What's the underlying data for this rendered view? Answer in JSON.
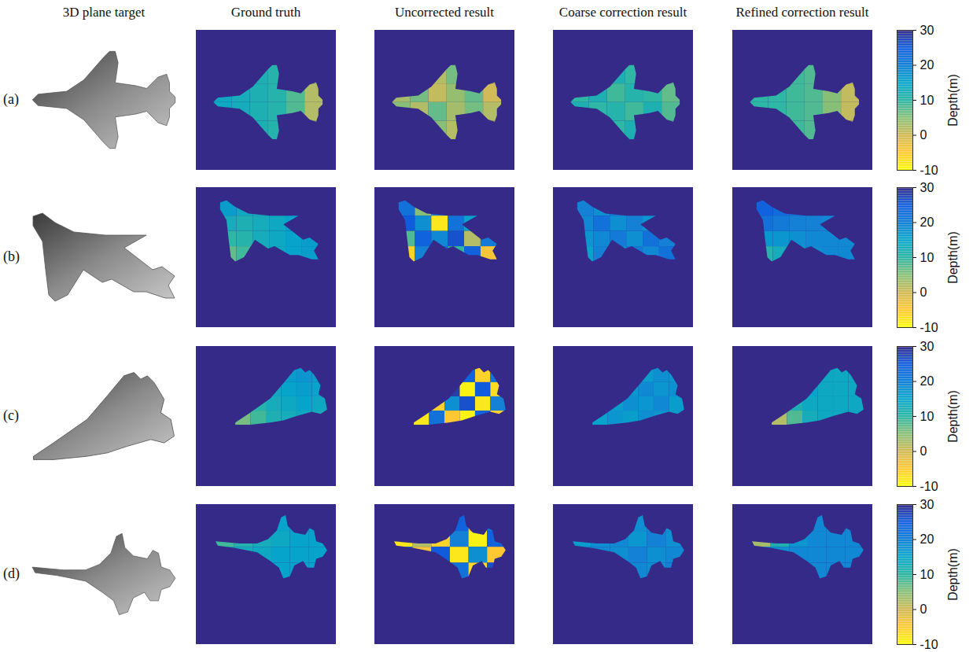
{
  "chart_data": {
    "type": "heatmap",
    "column_titles": [
      "3D plane target",
      "Ground truth",
      "Uncorrected result",
      "Coarse correction result",
      "Refined correction result"
    ],
    "xlim": [
      0,
      64
    ],
    "ylim": [
      0,
      64
    ],
    "tick_labels": false,
    "colorbar": {
      "label": "Depth(m)",
      "range": [
        -10,
        30
      ],
      "ticks": [
        -10,
        0,
        10,
        20,
        30
      ]
    },
    "rows": [
      {
        "label": "(a)",
        "background": 30,
        "outline": [
          [
            8,
            33
          ],
          [
            10,
            31
          ],
          [
            20,
            30
          ],
          [
            26,
            26
          ],
          [
            33,
            18
          ],
          [
            35,
            16
          ],
          [
            37,
            16
          ],
          [
            38,
            20
          ],
          [
            37,
            27
          ],
          [
            44,
            28
          ],
          [
            48,
            29
          ],
          [
            52,
            25
          ],
          [
            55,
            24
          ],
          [
            56,
            27
          ],
          [
            56,
            30
          ],
          [
            58,
            32
          ],
          [
            58,
            34
          ],
          [
            56,
            36
          ],
          [
            56,
            39
          ],
          [
            55,
            42
          ],
          [
            52,
            41
          ],
          [
            48,
            37
          ],
          [
            44,
            38
          ],
          [
            37,
            39
          ],
          [
            38,
            46
          ],
          [
            37,
            50
          ],
          [
            35,
            50
          ],
          [
            33,
            48
          ],
          [
            26,
            40
          ],
          [
            20,
            36
          ],
          [
            10,
            35
          ]
        ],
        "extent": [
          8,
          58,
          16,
          50
        ],
        "panels": [
          [
            [
              13,
              12,
              12,
              11,
              10,
              3
            ],
            [
              14,
              13,
              12,
              11,
              8,
              2
            ],
            [
              14,
              13,
              12,
              11,
              8,
              2
            ],
            [
              13,
              12,
              12,
              11,
              10,
              3
            ]
          ],
          [
            [
              8,
              4,
              2,
              6,
              5,
              1
            ],
            [
              3,
              6,
              1,
              4,
              7,
              0
            ],
            [
              5,
              2,
              7,
              3,
              6,
              2
            ],
            [
              7,
              3,
              5,
              2,
              4,
              1
            ]
          ],
          [
            [
              11,
              9,
              12,
              10,
              11,
              8
            ],
            [
              10,
              12,
              9,
              11,
              10,
              7
            ],
            [
              12,
              10,
              11,
              9,
              12,
              8
            ],
            [
              10,
              11,
              10,
              12,
              10,
              7
            ]
          ],
          [
            [
              10,
              10,
              9,
              8,
              6,
              2
            ],
            [
              10,
              10,
              9,
              8,
              5,
              1
            ],
            [
              10,
              10,
              9,
              8,
              5,
              1
            ],
            [
              10,
              10,
              9,
              8,
              6,
              2
            ]
          ]
        ]
      },
      {
        "label": "(b)",
        "background": 30,
        "outline": [
          [
            11,
            7
          ],
          [
            14,
            6
          ],
          [
            18,
            9
          ],
          [
            24,
            12
          ],
          [
            34,
            13
          ],
          [
            47,
            13
          ],
          [
            40,
            17
          ],
          [
            49,
            24
          ],
          [
            52,
            23
          ],
          [
            56,
            26
          ],
          [
            54,
            29
          ],
          [
            56,
            33
          ],
          [
            53,
            33
          ],
          [
            47,
            31
          ],
          [
            43,
            31
          ],
          [
            36,
            27
          ],
          [
            33,
            28
          ],
          [
            27,
            24
          ],
          [
            22,
            32
          ],
          [
            18,
            34
          ],
          [
            16,
            32
          ],
          [
            15,
            24
          ],
          [
            14,
            15
          ],
          [
            11,
            10
          ]
        ],
        "extent": [
          11,
          56,
          6,
          34
        ],
        "panels": [
          [
            [
              16,
              14,
              13,
              14,
              15,
              16
            ],
            [
              13,
              12,
              13,
              14,
              15,
              16
            ],
            [
              10,
              11,
              13,
              14,
              15,
              16
            ],
            [
              7,
              9,
              12,
              14,
              15,
              16
            ]
          ],
          [
            [
              22,
              5,
              20,
              -5,
              18,
              24
            ],
            [
              25,
              18,
              -8,
              22,
              15,
              20
            ],
            [
              8,
              24,
              19,
              26,
              2,
              21
            ],
            [
              -6,
              20,
              23,
              10,
              24,
              -4
            ]
          ],
          [
            [
              20,
              18,
              21,
              17,
              20,
              19
            ],
            [
              19,
              22,
              18,
              20,
              17,
              21
            ],
            [
              17,
              19,
              21,
              18,
              22,
              20
            ],
            [
              15,
              20,
              18,
              21,
              19,
              22
            ]
          ],
          [
            [
              24,
              23,
              22,
              21,
              20,
              20
            ],
            [
              22,
              21,
              20,
              20,
              19,
              19
            ],
            [
              17,
              17,
              18,
              19,
              19,
              19
            ],
            [
              11,
              13,
              16,
              18,
              19,
              19
            ]
          ]
        ]
      },
      {
        "label": "(c)",
        "background": 30,
        "outline": [
          [
            18,
            35
          ],
          [
            24,
            31
          ],
          [
            34,
            24
          ],
          [
            40,
            17
          ],
          [
            45,
            11
          ],
          [
            48,
            10
          ],
          [
            50,
            12
          ],
          [
            52,
            11
          ],
          [
            54,
            13
          ],
          [
            57,
            18
          ],
          [
            56,
            22
          ],
          [
            59,
            24
          ],
          [
            60,
            29
          ],
          [
            57,
            31
          ],
          [
            53,
            30
          ],
          [
            46,
            32
          ],
          [
            40,
            34
          ],
          [
            34,
            35
          ],
          [
            24,
            36
          ],
          [
            18,
            36
          ]
        ],
        "extent": [
          18,
          60,
          10,
          36
        ],
        "panels": [
          [
            [
              14,
              14,
              15,
              16,
              17,
              16
            ],
            [
              12,
              13,
              14,
              15,
              16,
              15
            ],
            [
              9,
              11,
              13,
              14,
              15,
              14
            ],
            [
              6,
              9,
              12,
              13,
              14,
              13
            ]
          ],
          [
            [
              20,
              26,
              -8,
              24,
              -6,
              22
            ],
            [
              -4,
              22,
              28,
              -9,
              25,
              -7
            ],
            [
              24,
              -6,
              18,
              26,
              -8,
              20
            ],
            [
              -8,
              22,
              -5,
              -9,
              24,
              -6
            ]
          ],
          [
            [
              18,
              17,
              19,
              16,
              18,
              17
            ],
            [
              16,
              18,
              17,
              19,
              17,
              18
            ],
            [
              17,
              16,
              18,
              17,
              19,
              16
            ],
            [
              15,
              17,
              16,
              18,
              17,
              16
            ]
          ],
          [
            [
              15,
              15,
              15,
              14,
              14,
              14
            ],
            [
              12,
              14,
              15,
              14,
              14,
              14
            ],
            [
              8,
              12,
              14,
              14,
              14,
              14
            ],
            [
              2,
              8,
              13,
              14,
              14,
              14
            ]
          ]
        ]
      },
      {
        "label": "(d)",
        "background": 30,
        "outline": [
          [
            9,
            17
          ],
          [
            20,
            18
          ],
          [
            28,
            18
          ],
          [
            33,
            16
          ],
          [
            37,
            12
          ],
          [
            39,
            6
          ],
          [
            41,
            5
          ],
          [
            42,
            10
          ],
          [
            45,
            13
          ],
          [
            50,
            14
          ],
          [
            52,
            11
          ],
          [
            54,
            12
          ],
          [
            55,
            17
          ],
          [
            58,
            18
          ],
          [
            60,
            21
          ],
          [
            58,
            24
          ],
          [
            55,
            25
          ],
          [
            54,
            29
          ],
          [
            51,
            29
          ],
          [
            49,
            26
          ],
          [
            45,
            28
          ],
          [
            43,
            33
          ],
          [
            40,
            34
          ],
          [
            38,
            29
          ],
          [
            34,
            26
          ],
          [
            28,
            22
          ],
          [
            18,
            20
          ],
          [
            10,
            19
          ]
        ],
        "extent": [
          9,
          60,
          5,
          34
        ],
        "panels": [
          [
            [
              14,
              14,
              14,
              15,
              15,
              15
            ],
            [
              9,
              11,
              13,
              14,
              15,
              15
            ],
            [
              12,
              13,
              14,
              15,
              15,
              15
            ],
            [
              14,
              14,
              15,
              15,
              15,
              15
            ]
          ],
          [
            [
              20,
              -5,
              18,
              24,
              -7,
              22
            ],
            [
              -8,
              2,
              -6,
              20,
              -9,
              24
            ],
            [
              22,
              -4,
              25,
              -8,
              18,
              -5
            ],
            [
              24,
              20,
              -6,
              22,
              -7,
              26
            ]
          ],
          [
            [
              19,
              18,
              20,
              18,
              19,
              18
            ],
            [
              16,
              18,
              19,
              17,
              20,
              18
            ],
            [
              18,
              19,
              18,
              20,
              18,
              19
            ],
            [
              19,
              18,
              20,
              19,
              18,
              20
            ]
          ],
          [
            [
              19,
              19,
              19,
              19,
              19,
              19
            ],
            [
              3,
              12,
              17,
              19,
              19,
              19
            ],
            [
              17,
              18,
              19,
              19,
              19,
              19
            ],
            [
              19,
              19,
              19,
              19,
              19,
              19
            ]
          ]
        ]
      }
    ]
  }
}
